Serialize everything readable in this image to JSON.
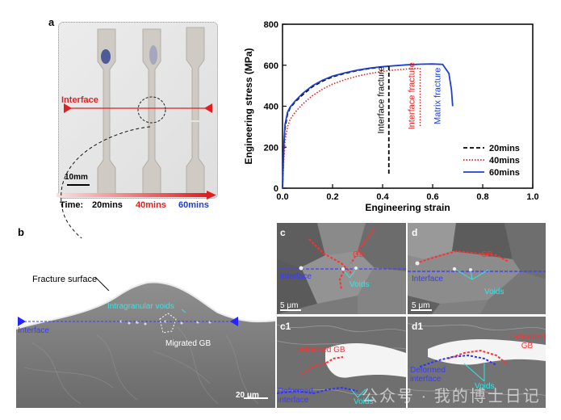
{
  "panel_a": {
    "letter": "a",
    "interface_label": "Interface",
    "scale_bar": "10mm",
    "time_label": "Time:",
    "times": [
      "20mins",
      "40mins",
      "60mins"
    ],
    "time_colors": [
      "#000000",
      "#e02020",
      "#1f3fd0"
    ]
  },
  "chart_data": {
    "type": "line",
    "xlabel": "Engineering strain",
    "ylabel": "Engineering stress (MPa)",
    "xlim": [
      0,
      1.0
    ],
    "ylim": [
      0,
      800
    ],
    "xticks": [
      "0.0",
      "0.2",
      "0.4",
      "0.6",
      "0.8",
      "1.0"
    ],
    "yticks": [
      "0",
      "200",
      "400",
      "600",
      "800"
    ],
    "series": [
      {
        "name": "20mins",
        "color": "#000000",
        "style": "dashed",
        "x": [
          0,
          0.005,
          0.01,
          0.02,
          0.03,
          0.05,
          0.08,
          0.12,
          0.16,
          0.2,
          0.25,
          0.3,
          0.35,
          0.4,
          0.425
        ],
        "y": [
          0,
          180,
          290,
          360,
          390,
          420,
          455,
          495,
          522,
          543,
          560,
          574,
          584,
          592,
          595
        ]
      },
      {
        "name": "40mins",
        "color": "#e02020",
        "style": "dotted",
        "x": [
          0,
          0.005,
          0.01,
          0.02,
          0.03,
          0.05,
          0.08,
          0.12,
          0.16,
          0.2,
          0.25,
          0.3,
          0.35,
          0.4,
          0.45,
          0.5,
          0.55
        ],
        "y": [
          0,
          130,
          230,
          300,
          335,
          370,
          410,
          452,
          483,
          508,
          530,
          547,
          560,
          570,
          577,
          582,
          585
        ]
      },
      {
        "name": "60mins",
        "color": "#1f3fd0",
        "style": "solid",
        "x": [
          0,
          0.005,
          0.01,
          0.02,
          0.03,
          0.05,
          0.08,
          0.12,
          0.16,
          0.2,
          0.25,
          0.3,
          0.35,
          0.4,
          0.45,
          0.5,
          0.55,
          0.6,
          0.64,
          0.665,
          0.675,
          0.68
        ],
        "y": [
          0,
          200,
          310,
          370,
          395,
          425,
          462,
          500,
          527,
          547,
          563,
          576,
          586,
          593,
          598,
          602,
          605,
          606,
          604,
          560,
          480,
          400
        ]
      }
    ],
    "annotations": [
      {
        "text": "Interface fracture",
        "x": 0.42,
        "color": "#000000"
      },
      {
        "text": "Interface fracture",
        "x": 0.55,
        "color": "#e02020"
      },
      {
        "text": "Matrix fracture",
        "x": 0.68,
        "color": "#1f3fd0"
      }
    ],
    "legend_position": "bottom-right"
  },
  "panel_b": {
    "letter": "b",
    "fracture_surface": "Fracture surface",
    "intragranular_voids": "Intragranular voids",
    "interface": "Interface",
    "migrated_gb": "Migrated GB",
    "scale_bar": "20 μm"
  },
  "panel_c": {
    "letter": "c",
    "gb": "GB",
    "interface": "Interface",
    "voids": "Voids",
    "scale_bar": "5 μm"
  },
  "panel_d": {
    "letter": "d",
    "gb": "GB",
    "interface": "Interface",
    "voids": "Voids",
    "scale_bar": "5 μm"
  },
  "panel_c1": {
    "letter": "c1",
    "deformed_gb": "Deformed GB",
    "deformed_interface": "Deformed interface",
    "voids": "Voids"
  },
  "panel_d1": {
    "letter": "d1",
    "deformed_gb": "Deformed GB",
    "deformed_interface": "Deformed interface",
    "voids": "Voids"
  },
  "watermark": "公众号 · 我的博士日记"
}
